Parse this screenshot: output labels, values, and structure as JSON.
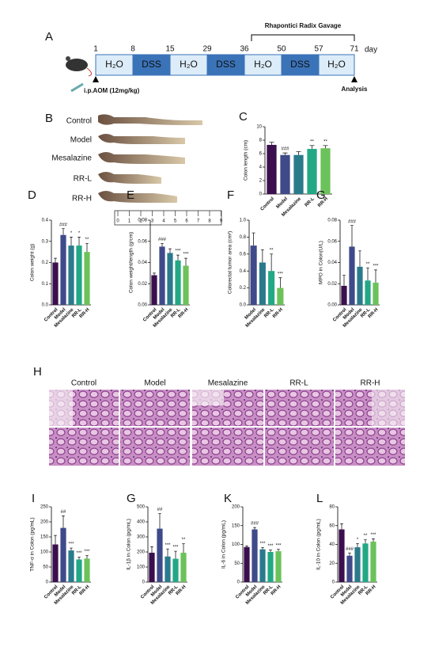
{
  "timeline": {
    "panel": "A",
    "gavage": "Rhapontici Radix Gavage",
    "days": [
      1,
      8,
      15,
      29,
      36,
      50,
      57,
      71
    ],
    "day_unit": "day",
    "segments": [
      "H₂O",
      "DSS",
      "H₂O",
      "DSS",
      "H₂O",
      "DSS",
      "H₂O"
    ],
    "injection": "i.p.AOM  (12mg/kg)",
    "end": "Analysis"
  },
  "photo": {
    "panel": "B",
    "labels": [
      "Control",
      "Model",
      "Mesalazine",
      "RR-L",
      "RR-H"
    ],
    "ruler": [
      0,
      1,
      2,
      3,
      4,
      5,
      6,
      7,
      8,
      9
    ]
  },
  "histology": {
    "panel": "H",
    "columns": [
      "Control",
      "Model",
      "Mesalazine",
      "RR-L",
      "RR-H"
    ]
  },
  "chart_data": [
    {
      "type": "bar",
      "panel": "C",
      "ylabel": "Colon length (cm)",
      "categories": [
        "Control",
        "Model",
        "Mesalazine",
        "RR-L",
        "RR-H"
      ],
      "values": [
        7.3,
        5.8,
        5.8,
        6.7,
        6.8
      ],
      "errors": [
        0.4,
        0.3,
        0.5,
        0.5,
        0.4
      ],
      "annotations": [
        null,
        "###",
        null,
        "**",
        "**"
      ],
      "colors": [
        "#3b0f4e",
        "#3f4a8a",
        "#2a7a8c",
        "#22a884",
        "#6cc25a"
      ],
      "ylim": [
        0,
        10
      ],
      "yticks": [
        0,
        2,
        4,
        6,
        8,
        10
      ]
    },
    {
      "type": "bar",
      "panel": "D",
      "ylabel": "Colon weight (g)",
      "categories": [
        "Control",
        "Model",
        "Mesalazine",
        "RR-L",
        "RR-H"
      ],
      "values": [
        0.2,
        0.33,
        0.28,
        0.28,
        0.25
      ],
      "errors": [
        0.02,
        0.03,
        0.04,
        0.04,
        0.04
      ],
      "annotations": [
        null,
        "###",
        "*",
        "*",
        "**"
      ],
      "colors": [
        "#3b0f4e",
        "#3f4a8a",
        "#2a7a8c",
        "#22a884",
        "#6cc25a"
      ],
      "ylim": [
        0,
        0.4
      ],
      "yticks": [
        {
          "value": 0,
          "label": "0.0"
        },
        0.1,
        0.2,
        0.3,
        0.4
      ]
    },
    {
      "type": "bar",
      "panel": "E",
      "ylabel": "Colon weight/length (g/cm)",
      "categories": [
        "Control",
        "Model",
        "Mesalazine",
        "RR-L",
        "RR-H"
      ],
      "values": [
        0.028,
        0.055,
        0.049,
        0.042,
        0.037
      ],
      "errors": [
        0.002,
        0.003,
        0.004,
        0.005,
        0.007
      ],
      "annotations": [
        null,
        "###",
        null,
        "***",
        "***"
      ],
      "colors": [
        "#3b0f4e",
        "#3f4a8a",
        "#2a7a8c",
        "#22a884",
        "#6cc25a"
      ],
      "ylim": [
        0,
        0.08
      ],
      "yticks": [
        {
          "value": 0,
          "label": "0.00"
        },
        0.02,
        0.04,
        0.06,
        0.08
      ]
    },
    {
      "type": "bar",
      "panel": "F",
      "ylabel": "Colorectal tumor area (cm²)",
      "categories": [
        "Model",
        "Mesalazine",
        "RR-L",
        "RR-H"
      ],
      "values": [
        0.7,
        0.5,
        0.4,
        0.2
      ],
      "errors": [
        0.15,
        0.15,
        0.2,
        0.12
      ],
      "annotations": [
        null,
        null,
        "**",
        "***"
      ],
      "colors": [
        "#3f4a8a",
        "#2a7a8c",
        "#22a884",
        "#6cc25a"
      ],
      "ylim": [
        0,
        1
      ],
      "yticks": [
        {
          "value": 0,
          "label": "0.0"
        },
        0.2,
        0.4,
        0.6,
        0.8,
        {
          "value": 1,
          "label": "1.0"
        }
      ]
    },
    {
      "type": "bar",
      "panel": "G",
      "ylabel": "MPO in Colon(U/L)",
      "categories": [
        "Control",
        "Model",
        "Mesalazine",
        "RR-L",
        "RR-H"
      ],
      "values": [
        0.018,
        0.055,
        0.036,
        0.023,
        0.021
      ],
      "errors": [
        0.01,
        0.02,
        0.015,
        0.012,
        0.012
      ],
      "annotations": [
        null,
        "###",
        null,
        "**",
        "***"
      ],
      "colors": [
        "#3b0f4e",
        "#3f4a8a",
        "#2a7a8c",
        "#22a884",
        "#6cc25a"
      ],
      "ylim": [
        0,
        0.08
      ],
      "yticks": [
        {
          "value": 0,
          "label": "0.00"
        },
        0.02,
        0.04,
        0.06,
        0.08
      ]
    },
    {
      "type": "bar",
      "panel": "I",
      "ylabel": "TNF-α in Colon (pg/mL)",
      "categories": [
        "Control",
        "Model",
        "Mesalazine",
        "RR-L",
        "RR-H"
      ],
      "values": [
        125,
        180,
        105,
        75,
        78
      ],
      "errors": [
        30,
        40,
        8,
        8,
        10
      ],
      "annotations": [
        null,
        "##",
        "***",
        "***",
        "***"
      ],
      "colors": [
        "#3b0f4e",
        "#3f4a8a",
        "#2a7a8c",
        "#22a884",
        "#6cc25a"
      ],
      "ylim": [
        0,
        250
      ],
      "yticks": [
        0,
        50,
        100,
        150,
        200,
        250
      ]
    },
    {
      "type": "bar",
      "panel": "G",
      "ylabel": "IL-1β in Colon (pg/mL)",
      "categories": [
        "Control",
        "Model",
        "Mesalazine",
        "RR-L",
        "RR-H"
      ],
      "values": [
        195,
        355,
        170,
        155,
        195
      ],
      "errors": [
        40,
        100,
        50,
        50,
        60
      ],
      "annotations": [
        null,
        "##",
        "***",
        "***",
        "**"
      ],
      "colors": [
        "#3b0f4e",
        "#3f4a8a",
        "#2a7a8c",
        "#22a884",
        "#6cc25a"
      ],
      "ylim": [
        0,
        500
      ],
      "yticks": [
        0,
        100,
        200,
        300,
        400,
        500
      ]
    },
    {
      "type": "bar",
      "panel": "K",
      "ylabel": "IL-6 in Colon (pg/mL)",
      "categories": [
        "Control",
        "Model",
        "Mesalazine",
        "RR-L",
        "RR-H"
      ],
      "values": [
        93,
        140,
        87,
        80,
        82
      ],
      "errors": [
        3,
        5,
        5,
        5,
        5
      ],
      "annotations": [
        null,
        "###",
        "***",
        "***",
        "***"
      ],
      "colors": [
        "#3b0f4e",
        "#3f4a8a",
        "#2a7a8c",
        "#22a884",
        "#6cc25a"
      ],
      "ylim": [
        0,
        200
      ],
      "yticks": [
        0,
        50,
        100,
        150,
        200
      ]
    },
    {
      "type": "bar",
      "panel": "L",
      "ylabel": "IL-10 in Colon (pg/mL)",
      "categories": [
        "Control",
        "Model",
        "Mesalazine",
        "RR-L",
        "RR-H"
      ],
      "values": [
        56,
        28,
        37,
        41,
        43
      ],
      "errors": [
        6,
        3,
        4,
        4,
        3
      ],
      "annotations": [
        null,
        "###",
        "*",
        "**",
        "***"
      ],
      "colors": [
        "#3b0f4e",
        "#3f4a8a",
        "#2a7a8c",
        "#22a884",
        "#6cc25a"
      ],
      "ylim": [
        0,
        80
      ],
      "yticks": [
        0,
        20,
        40,
        60,
        80
      ]
    }
  ]
}
